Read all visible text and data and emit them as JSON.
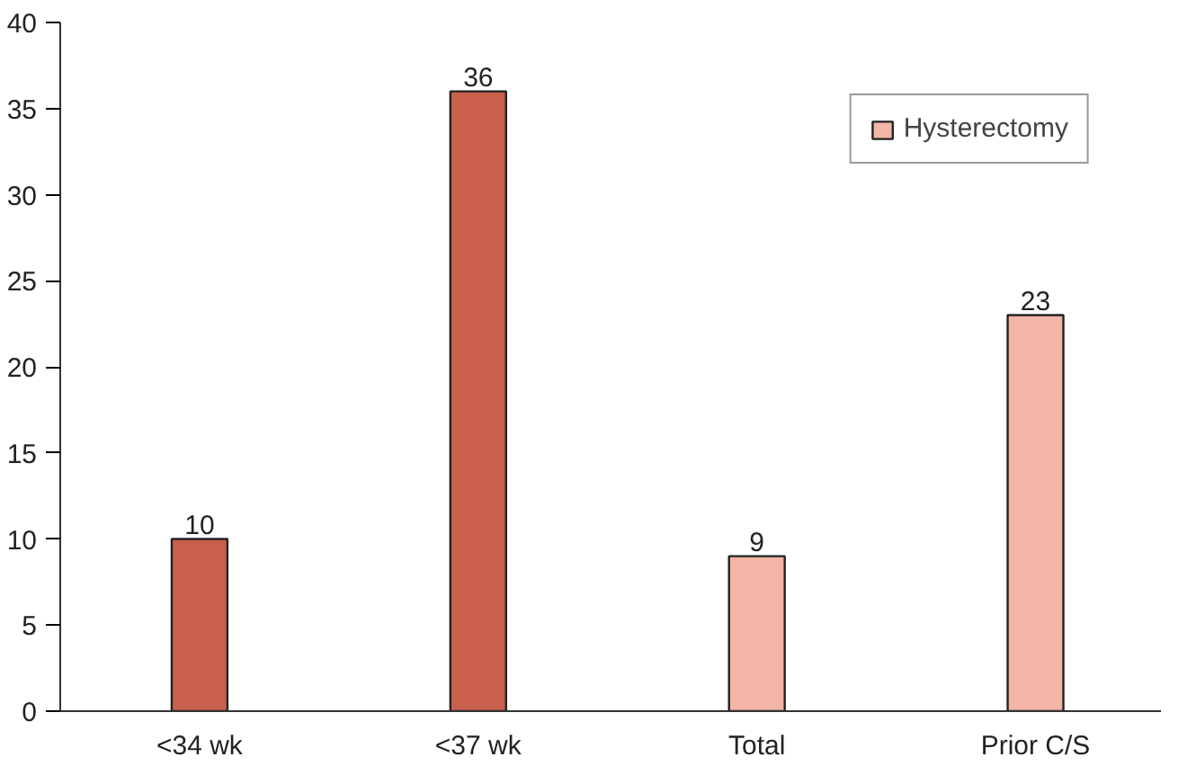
{
  "chart_data": {
    "type": "bar",
    "categories": [
      "<34 wk",
      "<37 wk",
      "Total",
      "Prior C/S"
    ],
    "series": [
      {
        "color": "#c9604e",
        "values": [
          10,
          36,
          null,
          null
        ]
      },
      {
        "name": "Hysterectomy",
        "color": "#f2b5a7",
        "values": [
          null,
          null,
          9,
          23
        ]
      }
    ],
    "ylim": [
      0,
      40
    ],
    "yticks": [
      0,
      5,
      10,
      15,
      20,
      25,
      30,
      35,
      40
    ],
    "grid": false,
    "legend": "top right",
    "data_labels": true
  }
}
